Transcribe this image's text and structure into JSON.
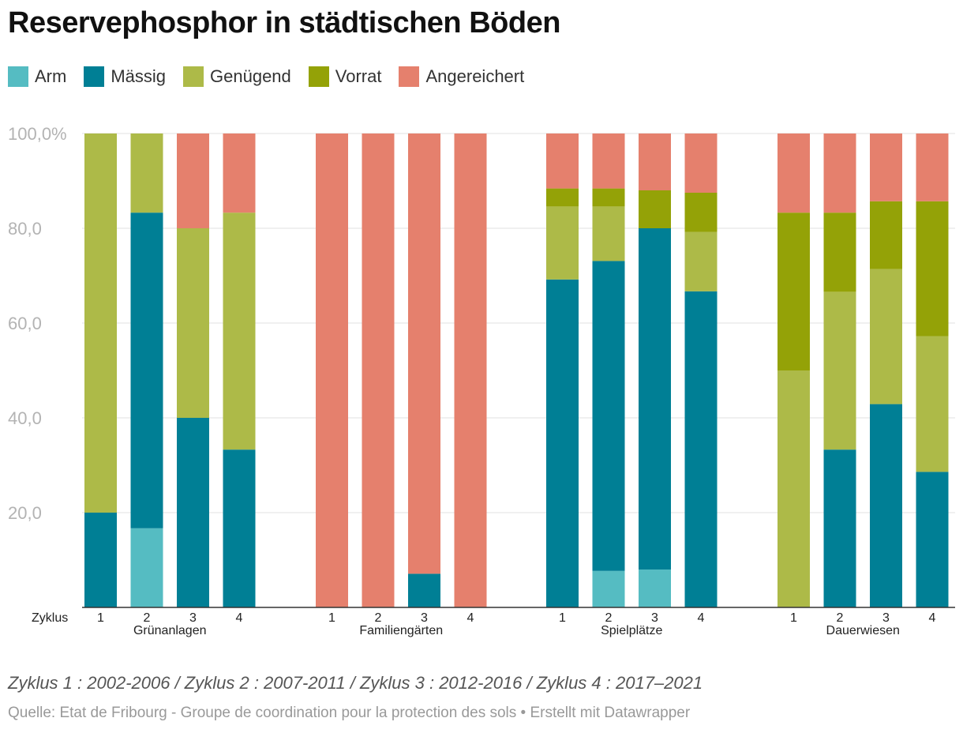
{
  "title": "Reservephosphor in städtischen Böden",
  "legend": [
    {
      "label": "Arm",
      "color": "#55bcc2"
    },
    {
      "label": "Mässig",
      "color": "#007f95"
    },
    {
      "label": "Genügend",
      "color": "#adba48"
    },
    {
      "label": "Vorrat",
      "color": "#94a207"
    },
    {
      "label": "Angereichert",
      "color": "#e5806d"
    }
  ],
  "chart_data": {
    "type": "bar",
    "stacked": true,
    "title": "Reservephosphor in städtischen Böden",
    "x_axis_prefix": "Zyklus",
    "ylim": [
      0,
      100
    ],
    "y_ticks": [
      "20,0",
      "40,0",
      "60,0",
      "80,0",
      "100,0%"
    ],
    "y_tick_values": [
      20,
      40,
      60,
      80,
      100
    ],
    "grid": true,
    "legend_position": "top-left",
    "groups": [
      {
        "name": "Grünanlagen",
        "categories": [
          "1",
          "2",
          "3",
          "4"
        ],
        "series": [
          {
            "name": "Arm",
            "values": [
              0,
              16.7,
              0,
              0
            ]
          },
          {
            "name": "Mässig",
            "values": [
              20,
              66.6,
              40,
              33.3
            ]
          },
          {
            "name": "Genügend",
            "values": [
              80,
              16.7,
              40,
              50
            ]
          },
          {
            "name": "Vorrat",
            "values": [
              0,
              0,
              0,
              0
            ]
          },
          {
            "name": "Angereichert",
            "values": [
              0,
              0,
              20,
              16.7
            ]
          }
        ]
      },
      {
        "name": "Familiengärten",
        "categories": [
          "1",
          "2",
          "3",
          "4"
        ],
        "series": [
          {
            "name": "Arm",
            "values": [
              0,
              0,
              0,
              0
            ]
          },
          {
            "name": "Mässig",
            "values": [
              0,
              0,
              7.1,
              0
            ]
          },
          {
            "name": "Genügend",
            "values": [
              0,
              0,
              0,
              0
            ]
          },
          {
            "name": "Vorrat",
            "values": [
              0,
              0,
              0,
              0
            ]
          },
          {
            "name": "Angereichert",
            "values": [
              100,
              100,
              92.9,
              100
            ]
          }
        ]
      },
      {
        "name": "Spielplätze",
        "categories": [
          "1",
          "2",
          "3",
          "4"
        ],
        "series": [
          {
            "name": "Arm",
            "values": [
              0,
              7.7,
              8,
              0
            ]
          },
          {
            "name": "Mässig",
            "values": [
              69.2,
              65.4,
              72,
              66.7
            ]
          },
          {
            "name": "Genügend",
            "values": [
              15.4,
              11.5,
              0,
              12.5
            ]
          },
          {
            "name": "Vorrat",
            "values": [
              3.8,
              3.8,
              8,
              8.3
            ]
          },
          {
            "name": "Angereichert",
            "values": [
              11.6,
              11.6,
              12,
              12.5
            ]
          }
        ]
      },
      {
        "name": "Dauerwiesen",
        "categories": [
          "1",
          "2",
          "3",
          "4"
        ],
        "series": [
          {
            "name": "Arm",
            "values": [
              0,
              0,
              0,
              0
            ]
          },
          {
            "name": "Mässig",
            "values": [
              0,
              33.3,
              42.9,
              28.6
            ]
          },
          {
            "name": "Genügend",
            "values": [
              50,
              33.3,
              28.5,
              28.6
            ]
          },
          {
            "name": "Vorrat",
            "values": [
              33.3,
              16.7,
              14.3,
              28.5
            ]
          },
          {
            "name": "Angereichert",
            "values": [
              16.7,
              16.7,
              14.3,
              14.3
            ]
          }
        ]
      }
    ]
  },
  "footnote": "Zyklus 1 : 2002-2006 / Zyklus 2 : 2007-2011 / Zyklus 3 : 2012-2016 / Zyklus 4 : 2017–2021",
  "source": "Quelle: Etat de Fribourg - Groupe de coordination pour la protection des sols • Erstellt mit Datawrapper"
}
